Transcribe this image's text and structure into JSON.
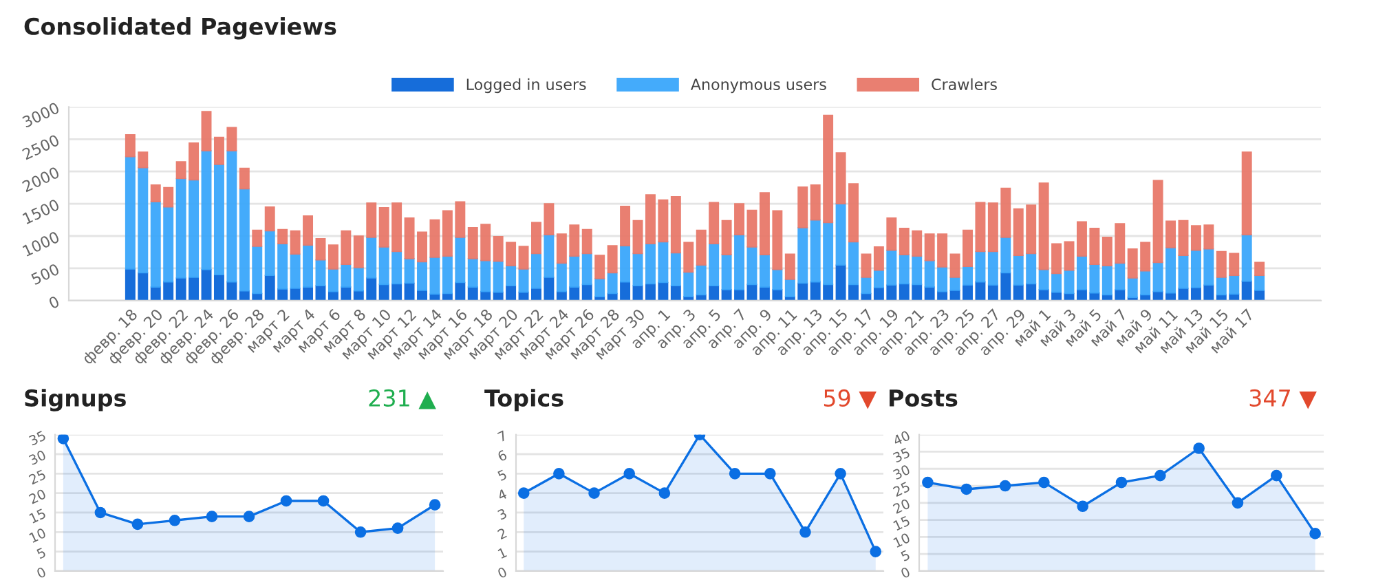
{
  "chart_data": [
    {
      "type": "bar",
      "title": "Consolidated Pageviews",
      "stacked": true,
      "grid": "y",
      "legend": "top",
      "categories": [
        "февр. 18",
        null,
        "февр. 20",
        null,
        "февр. 22",
        null,
        "февр. 24",
        null,
        "февр. 26",
        null,
        "февр. 28",
        null,
        "март 2",
        null,
        "март 4",
        null,
        "март 6",
        null,
        "март 8",
        null,
        "март 10",
        null,
        "март 12",
        null,
        "март 14",
        null,
        "март 16",
        null,
        "март 18",
        null,
        "март 20",
        null,
        "март 22",
        null,
        "март 24",
        null,
        "март 26",
        null,
        "март 28",
        null,
        "март 30",
        null,
        "апр. 1",
        null,
        "апр. 3",
        null,
        "апр. 5",
        null,
        "апр. 7",
        null,
        "апр. 9",
        null,
        "апр. 11",
        null,
        "апр. 13",
        null,
        "апр. 15",
        null,
        "апр. 17",
        null,
        "апр. 19",
        null,
        "апр. 21",
        null,
        "апр. 23",
        null,
        "апр. 25",
        null,
        "апр. 27",
        null,
        "апр. 29",
        null,
        "май 1",
        null,
        "май 3",
        null,
        "май 5",
        null,
        "май 7",
        null,
        "май 9",
        null,
        "май 11",
        null,
        "май 13",
        null,
        "май 15",
        null,
        "май 17",
        null
      ],
      "series": [
        {
          "name": "Logged in users",
          "color": "#0a66d9",
          "values": [
            490,
            430,
            210,
            290,
            350,
            360,
            480,
            400,
            290,
            150,
            110,
            390,
            180,
            190,
            210,
            230,
            140,
            210,
            150,
            350,
            250,
            260,
            270,
            160,
            100,
            110,
            280,
            210,
            140,
            130,
            230,
            130,
            190,
            360,
            140,
            210,
            250,
            60,
            110,
            290,
            230,
            260,
            280,
            230,
            60,
            90,
            230,
            170,
            170,
            250,
            210,
            170,
            60,
            270,
            290,
            250,
            550,
            250,
            110,
            200,
            240,
            260,
            250,
            210,
            140,
            160,
            240,
            290,
            240,
            430,
            240,
            260,
            170,
            130,
            110,
            170,
            120,
            90,
            170,
            50,
            90,
            140,
            120,
            190,
            200,
            240,
            90,
            100,
            300,
            160
          ]
        },
        {
          "name": "Anonymous users",
          "color": "#3ba7fb",
          "values": [
            1740,
            1630,
            1320,
            1160,
            1540,
            1510,
            1840,
            1710,
            2030,
            1580,
            730,
            690,
            700,
            530,
            650,
            400,
            350,
            350,
            360,
            630,
            580,
            500,
            380,
            440,
            570,
            580,
            700,
            440,
            480,
            480,
            310,
            360,
            540,
            660,
            440,
            480,
            480,
            280,
            320,
            560,
            500,
            620,
            630,
            510,
            380,
            460,
            650,
            540,
            850,
            580,
            500,
            310,
            270,
            860,
            960,
            960,
            950,
            660,
            250,
            270,
            540,
            450,
            440,
            410,
            380,
            200,
            290,
            470,
            520,
            550,
            460,
            470,
            310,
            290,
            360,
            520,
            440,
            450,
            410,
            300,
            370,
            450,
            700,
            510,
            580,
            560,
            270,
            290,
            720,
            230
          ]
        },
        {
          "name": "Crawlers",
          "color": "#e8796a",
          "values": [
            340,
            240,
            260,
            300,
            260,
            570,
            610,
            420,
            360,
            320,
            250,
            370,
            220,
            360,
            450,
            330,
            370,
            520,
            490,
            530,
            610,
            750,
            630,
            460,
            580,
            700,
            550,
            480,
            560,
            380,
            360,
            350,
            480,
            480,
            450,
            480,
            370,
            360,
            420,
            610,
            510,
            760,
            650,
            870,
            460,
            540,
            640,
            530,
            480,
            570,
            960,
            910,
            390,
            630,
            540,
            1660,
            790,
            900,
            360,
            360,
            500,
            410,
            390,
            410,
            510,
            360,
            560,
            760,
            750,
            760,
            720,
            750,
            1340,
            460,
            440,
            530,
            560,
            440,
            610,
            450,
            440,
            1270,
            410,
            540,
            380,
            370,
            400,
            340,
            1280,
            200
          ]
        }
      ],
      "ylim": [
        0,
        3000
      ],
      "yticks": [
        0,
        500,
        1000,
        1500,
        2000,
        2500,
        3000
      ]
    },
    {
      "type": "area",
      "title": "Signups",
      "annotations": [
        "231 ▲"
      ],
      "marker": "circle",
      "grid": "y",
      "tick_labels": "y",
      "categories": [
        null,
        null,
        null,
        null,
        null,
        null,
        null,
        null,
        null,
        null,
        null
      ],
      "series": [
        {
          "color": "#0b6fe3",
          "values": [
            34,
            15,
            12,
            13,
            14,
            14,
            18,
            18,
            10,
            11,
            17
          ]
        }
      ],
      "ylim": [
        0,
        35
      ],
      "yticks": [
        0,
        5,
        10,
        15,
        20,
        25,
        30,
        35
      ]
    },
    {
      "type": "area",
      "title": "Topics",
      "annotations": [
        "59 ▼"
      ],
      "marker": "circle",
      "grid": "y",
      "tick_labels": "y",
      "categories": [
        null,
        null,
        null,
        null,
        null,
        null,
        null,
        null,
        null,
        null,
        null
      ],
      "series": [
        {
          "color": "#0b6fe3",
          "values": [
            4,
            5,
            4,
            5,
            4,
            7,
            5,
            5,
            2,
            5,
            1
          ]
        }
      ],
      "ylim": [
        0,
        7
      ],
      "yticks": [
        0,
        1,
        2,
        3,
        4,
        5,
        6,
        7
      ]
    },
    {
      "type": "area",
      "title": "Posts",
      "annotations": [
        "347 ▼"
      ],
      "marker": "circle",
      "grid": "y",
      "tick_labels": "y",
      "categories": [
        null,
        null,
        null,
        null,
        null,
        null,
        null,
        null,
        null,
        null,
        null
      ],
      "series": [
        {
          "color": "#0b6fe3",
          "values": [
            26,
            24,
            25,
            26,
            19,
            26,
            28,
            36,
            20,
            28,
            11
          ]
        }
      ],
      "ylim": [
        0,
        40
      ],
      "yticks": [
        0,
        5,
        10,
        15,
        20,
        25,
        30,
        35,
        40
      ]
    }
  ]
}
